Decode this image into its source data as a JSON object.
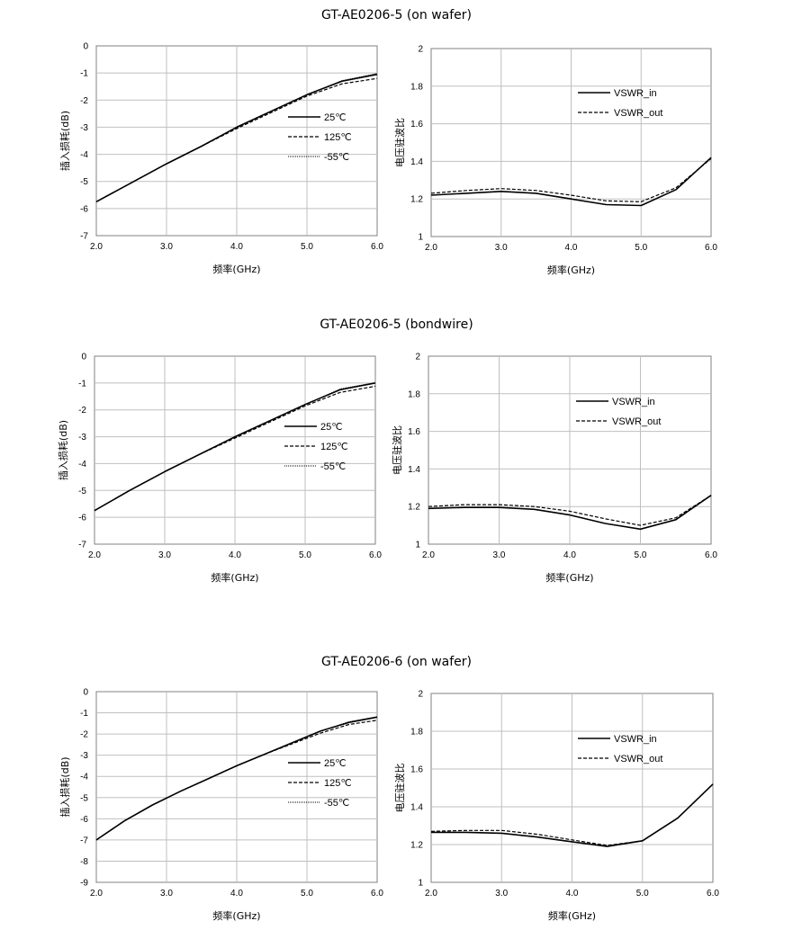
{
  "sections": [
    {
      "title": "GT-AE0206-5  (on wafer)"
    },
    {
      "title": "GT-AE0206-5  (bondwire)"
    },
    {
      "title": "GT-AE0206-6  (on wafer)"
    }
  ],
  "chart_data": [
    {
      "type": "line",
      "title": "",
      "xlabel": "频率(GHz)",
      "ylabel": "插入损耗(dB)",
      "xlim": [
        2.0,
        6.0
      ],
      "ylim": [
        -7,
        0
      ],
      "x_ticks": [
        "2.0",
        "3.0",
        "4.0",
        "5.0",
        "6.0"
      ],
      "y_ticks": [
        "0",
        "-1",
        "-2",
        "-3",
        "-4",
        "-5",
        "-6",
        "-7"
      ],
      "grid": true,
      "legend": "center-right",
      "series": [
        {
          "name": "25℃",
          "style": "solid",
          "x": [
            2.0,
            2.5,
            3.0,
            3.5,
            4.0,
            4.5,
            5.0,
            5.5,
            6.0
          ],
          "values": [
            -5.75,
            -5.05,
            -4.35,
            -3.7,
            -3.0,
            -2.4,
            -1.8,
            -1.3,
            -1.05
          ]
        },
        {
          "name": "125℃",
          "style": "dashed",
          "x": [
            2.0,
            2.5,
            3.0,
            3.5,
            4.0,
            4.5,
            5.0,
            5.5,
            6.0
          ],
          "values": [
            -5.75,
            -5.05,
            -4.35,
            -3.7,
            -3.05,
            -2.45,
            -1.85,
            -1.4,
            -1.2
          ]
        },
        {
          "name": "-55℃",
          "style": "dotted",
          "x": [
            2.0,
            2.5,
            3.0,
            3.5,
            4.0,
            4.5,
            5.0,
            5.5,
            6.0
          ],
          "values": [
            -5.75,
            -5.05,
            -4.35,
            -3.7,
            -3.0,
            -2.4,
            -1.8,
            -1.28,
            -1.02
          ]
        }
      ]
    },
    {
      "type": "line",
      "title": "",
      "xlabel": "频率(GHz)",
      "ylabel": "电压驻波比",
      "xlim": [
        2.0,
        6.0
      ],
      "ylim": [
        1,
        2
      ],
      "x_ticks": [
        "2.0",
        "3.0",
        "4.0",
        "5.0",
        "6.0"
      ],
      "y_ticks": [
        "2",
        "1.8",
        "1.6",
        "1.4",
        "1.2",
        "1"
      ],
      "grid": true,
      "legend": "top-right",
      "series": [
        {
          "name": "VSWR_in",
          "style": "solid",
          "x": [
            2.0,
            2.5,
            3.0,
            3.5,
            4.0,
            4.5,
            5.0,
            5.5,
            6.0
          ],
          "values": [
            1.22,
            1.23,
            1.24,
            1.23,
            1.2,
            1.17,
            1.165,
            1.25,
            1.42
          ]
        },
        {
          "name": "VSWR_out",
          "style": "dashed",
          "x": [
            2.0,
            2.5,
            3.0,
            3.5,
            4.0,
            4.5,
            5.0,
            5.5,
            6.0
          ],
          "values": [
            1.23,
            1.245,
            1.255,
            1.245,
            1.22,
            1.19,
            1.185,
            1.26,
            1.415
          ]
        }
      ]
    },
    {
      "type": "line",
      "title": "",
      "xlabel": "频率(GHz)",
      "ylabel": "插入损耗(dB)",
      "xlim": [
        2.0,
        6.0
      ],
      "ylim": [
        -7,
        0
      ],
      "x_ticks": [
        "2.0",
        "3.0",
        "4.0",
        "5.0",
        "6.0"
      ],
      "y_ticks": [
        "0",
        "-1",
        "-2",
        "-3",
        "-4",
        "-5",
        "-6",
        "-7"
      ],
      "grid": true,
      "legend": "center-right",
      "series": [
        {
          "name": "25℃",
          "style": "solid",
          "x": [
            2.0,
            2.5,
            3.0,
            3.5,
            4.0,
            4.5,
            5.0,
            5.5,
            6.0
          ],
          "values": [
            -5.75,
            -5.0,
            -4.3,
            -3.65,
            -3.0,
            -2.4,
            -1.8,
            -1.25,
            -1.0
          ]
        },
        {
          "name": "125℃",
          "style": "dashed",
          "x": [
            2.0,
            2.5,
            3.0,
            3.5,
            4.0,
            4.5,
            5.0,
            5.5,
            6.0
          ],
          "values": [
            -5.75,
            -5.0,
            -4.3,
            -3.65,
            -3.05,
            -2.45,
            -1.85,
            -1.35,
            -1.12
          ]
        },
        {
          "name": "-55℃",
          "style": "dotted",
          "x": [
            2.0,
            2.5,
            3.0,
            3.5,
            4.0,
            4.5,
            5.0,
            5.5,
            6.0
          ],
          "values": [
            -5.75,
            -5.0,
            -4.3,
            -3.65,
            -3.0,
            -2.4,
            -1.8,
            -1.22,
            -0.98
          ]
        }
      ]
    },
    {
      "type": "line",
      "title": "",
      "xlabel": "频率(GHz)",
      "ylabel": "电压驻波比",
      "xlim": [
        2.0,
        6.0
      ],
      "ylim": [
        1,
        2
      ],
      "x_ticks": [
        "2.0",
        "3.0",
        "4.0",
        "5.0",
        "6.0"
      ],
      "y_ticks": [
        "2",
        "1.8",
        "1.6",
        "1.4",
        "1.2",
        "1"
      ],
      "grid": true,
      "legend": "top-right",
      "series": [
        {
          "name": "VSWR_in",
          "style": "solid",
          "x": [
            2.0,
            2.5,
            3.0,
            3.5,
            4.0,
            4.5,
            5.0,
            5.5,
            6.0
          ],
          "values": [
            1.19,
            1.195,
            1.195,
            1.185,
            1.155,
            1.11,
            1.08,
            1.13,
            1.26
          ]
        },
        {
          "name": "VSWR_out",
          "style": "dashed",
          "x": [
            2.0,
            2.5,
            3.0,
            3.5,
            4.0,
            4.5,
            5.0,
            5.5,
            6.0
          ],
          "values": [
            1.2,
            1.21,
            1.21,
            1.2,
            1.175,
            1.135,
            1.1,
            1.14,
            1.26
          ]
        }
      ]
    },
    {
      "type": "line",
      "title": "",
      "xlabel": "频率(GHz)",
      "ylabel": "插入损耗(dB)",
      "xlim": [
        2.0,
        6.0
      ],
      "ylim": [
        -9,
        0
      ],
      "x_ticks": [
        "2.0",
        "3.0",
        "4.0",
        "5.0",
        "6.0"
      ],
      "y_ticks": [
        "0",
        "-1",
        "-2",
        "-3",
        "-4",
        "-5",
        "-6",
        "-7",
        "-8",
        "-9"
      ],
      "grid": true,
      "legend": "center-right",
      "series": [
        {
          "name": "25℃",
          "style": "solid",
          "x": [
            2.0,
            2.4,
            2.8,
            3.2,
            3.6,
            4.0,
            4.4,
            4.8,
            5.2,
            5.6,
            6.0
          ],
          "values": [
            -7.0,
            -6.1,
            -5.35,
            -4.7,
            -4.1,
            -3.5,
            -2.95,
            -2.4,
            -1.85,
            -1.45,
            -1.2
          ]
        },
        {
          "name": "125℃",
          "style": "dashed",
          "x": [
            2.0,
            2.4,
            2.8,
            3.2,
            3.6,
            4.0,
            4.4,
            4.8,
            5.2,
            5.6,
            6.0
          ],
          "values": [
            -7.0,
            -6.1,
            -5.35,
            -4.7,
            -4.1,
            -3.5,
            -2.95,
            -2.45,
            -1.95,
            -1.55,
            -1.35
          ]
        },
        {
          "name": "-55℃",
          "style": "dotted",
          "x": [
            2.0,
            2.4,
            2.8,
            3.2,
            3.6,
            4.0,
            4.4,
            4.8,
            5.2,
            5.6,
            6.0
          ],
          "values": [
            -7.0,
            -6.1,
            -5.35,
            -4.7,
            -4.1,
            -3.5,
            -2.95,
            -2.4,
            -1.85,
            -1.42,
            -1.18
          ]
        }
      ]
    },
    {
      "type": "line",
      "title": "",
      "xlabel": "频率(GHz)",
      "ylabel": "电压驻波比",
      "xlim": [
        2.0,
        6.0
      ],
      "ylim": [
        1,
        2
      ],
      "x_ticks": [
        "2.0",
        "3.0",
        "4.0",
        "5.0",
        "6.0"
      ],
      "y_ticks": [
        "2",
        "1.8",
        "1.6",
        "1.4",
        "1.2",
        "1"
      ],
      "grid": true,
      "legend": "top-right",
      "series": [
        {
          "name": "VSWR_in",
          "style": "solid",
          "x": [
            2.0,
            2.5,
            3.0,
            3.5,
            4.0,
            4.5,
            5.0,
            5.5,
            6.0
          ],
          "values": [
            1.265,
            1.265,
            1.26,
            1.24,
            1.215,
            1.19,
            1.22,
            1.34,
            1.52
          ]
        },
        {
          "name": "VSWR_out",
          "style": "dashed",
          "x": [
            2.0,
            2.5,
            3.0,
            3.5,
            4.0,
            4.5,
            5.0,
            5.5,
            6.0
          ],
          "values": [
            1.27,
            1.275,
            1.275,
            1.255,
            1.225,
            1.195,
            1.22,
            1.34,
            1.52
          ]
        }
      ]
    }
  ]
}
